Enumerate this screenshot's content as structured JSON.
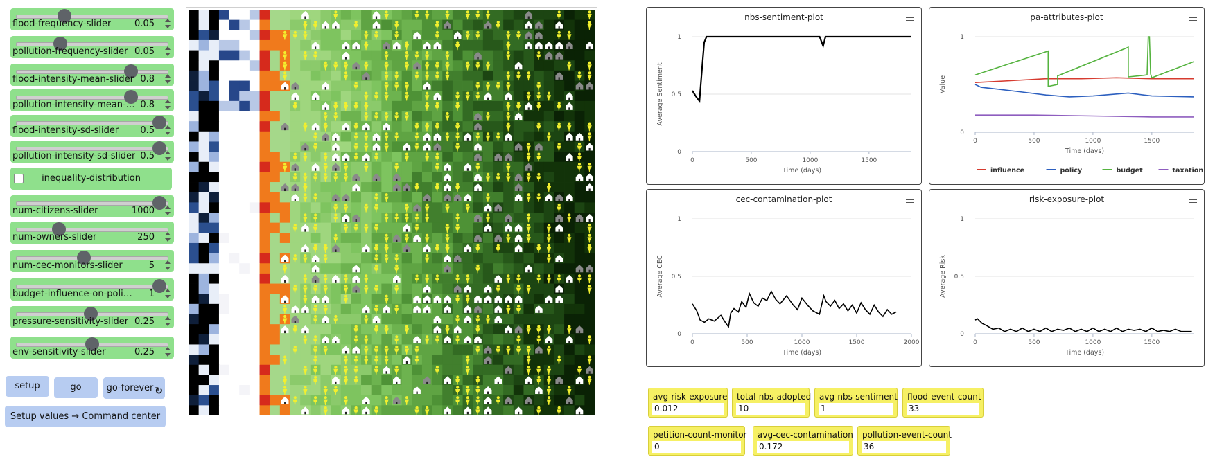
{
  "sliders": [
    {
      "name": "flood-frequency-slider",
      "label": "flood-frequency-slider",
      "value": "0.05",
      "pos": 0.3
    },
    {
      "name": "pollution-frequency-slider",
      "label": "pollution-frequency-slider",
      "value": "0.05",
      "pos": 0.27
    },
    {
      "name": "flood-intensity-mean-slider",
      "label": "flood-intensity-mean-slider",
      "value": "0.8",
      "pos": 0.78
    },
    {
      "name": "pollution-intensity-mean-slider",
      "label": "pollution-intensity-mean-slider",
      "value": "0.8",
      "pos": 0.78
    },
    {
      "name": "flood-intensity-sd-slider",
      "label": "flood-intensity-sd-slider",
      "value": "0.5",
      "pos": 0.985
    },
    {
      "name": "pollution-intensity-sd-slider",
      "label": "pollution-intensity-sd-slider",
      "value": "0.5",
      "pos": 0.985
    },
    {
      "name": "num-citizens-slider",
      "label": "num-citizens-slider",
      "value": "1000",
      "pos": 0.985
    },
    {
      "name": "num-owners-slider",
      "label": "num-owners-slider",
      "value": "250",
      "pos": 0.26
    },
    {
      "name": "num-cec-monitors-slider",
      "label": "num-cec-monitors-slider",
      "value": "5",
      "pos": 0.44
    },
    {
      "name": "budget-influence-on-policy-slider",
      "label": "budget-influence-on-policy-slider",
      "value": "1",
      "pos": 0.985
    },
    {
      "name": "pressure-sensitivity-slider",
      "label": "pressure-sensitivity-slider",
      "value": "0.25",
      "pos": 0.49
    },
    {
      "name": "env-sensitivity-slider",
      "label": "env-sensitivity-slider",
      "value": "0.25",
      "pos": 0.5
    }
  ],
  "switch": {
    "label": "inequality-distribution",
    "checked": false
  },
  "buttons": {
    "setup": "setup",
    "go": "go",
    "go_forever": "go-forever",
    "setup_values": "Setup values → Command center"
  },
  "plots": {
    "nbs": {
      "title": "nbs-sentiment-plot",
      "xlabel": "Time (days)",
      "ylabel": "Average Sentiment"
    },
    "pa": {
      "title": "pa-attributes-plot",
      "xlabel": "Time (days)",
      "ylabel": "Value"
    },
    "cec": {
      "title": "cec-contamination-plot",
      "xlabel": "Time (days)",
      "ylabel": "Average CEC"
    },
    "risk": {
      "title": "risk-exposure-plot",
      "xlabel": "Time (days)",
      "ylabel": "Average Risk"
    }
  },
  "chart_data": [
    {
      "type": "line",
      "title": "nbs-sentiment-plot",
      "xlabel": "Time (days)",
      "ylabel": "Average Sentiment",
      "xlim": [
        0,
        1860
      ],
      "ylim": [
        0,
        1
      ],
      "xticks": [
        0,
        500,
        1000,
        1500
      ],
      "yticks": [
        0,
        0.5,
        1
      ],
      "series": [
        {
          "color": "#000000",
          "x": [
            0,
            30,
            60,
            80,
            100,
            120,
            1000,
            1080,
            1110,
            1130,
            1180,
            1860
          ],
          "y": [
            0.53,
            0.48,
            0.44,
            0.7,
            0.95,
            1,
            1,
            1,
            0.92,
            1,
            1,
            1
          ]
        }
      ]
    },
    {
      "type": "line",
      "title": "pa-attributes-plot",
      "xlabel": "Time (days)",
      "ylabel": "Value",
      "xlim": [
        0,
        1860
      ],
      "ylim": [
        0,
        1
      ],
      "xticks": [
        0,
        500,
        1000,
        1500
      ],
      "yticks": [
        0,
        1
      ],
      "legend": "bottom",
      "series": [
        {
          "name": "influence",
          "color": "#d63b2f",
          "x": [
            0,
            300,
            600,
            900,
            1200,
            1500,
            1860
          ],
          "y": [
            0.52,
            0.54,
            0.56,
            0.56,
            0.57,
            0.56,
            0.56
          ]
        },
        {
          "name": "policy",
          "color": "#2c5fbf",
          "x": [
            0,
            50,
            200,
            400,
            600,
            800,
            1000,
            1300,
            1500,
            1860
          ],
          "y": [
            0.5,
            0.47,
            0.45,
            0.42,
            0.39,
            0.37,
            0.38,
            0.41,
            0.38,
            0.37
          ]
        },
        {
          "name": "budget",
          "color": "#55b33f",
          "x": [
            0,
            620,
            620,
            700,
            700,
            1300,
            1300,
            1460,
            1470,
            1480,
            1490,
            1500,
            1860
          ],
          "y": [
            0.6,
            0.85,
            0.48,
            0.5,
            0.59,
            0.89,
            0.58,
            0.6,
            1,
            1,
            0.61,
            0.57,
            0.74
          ]
        },
        {
          "name": "taxation",
          "color": "#8e5dbf",
          "x": [
            0,
            500,
            1000,
            1500,
            1860
          ],
          "y": [
            0.18,
            0.18,
            0.17,
            0.16,
            0.16
          ]
        }
      ]
    },
    {
      "type": "line",
      "title": "cec-contamination-plot",
      "xlabel": "Time (days)",
      "ylabel": "Average CEC",
      "xlim": [
        0,
        2000
      ],
      "ylim": [
        0,
        1
      ],
      "xticks": [
        0,
        500,
        1000,
        1500,
        2000
      ],
      "yticks": [
        0,
        0.5,
        1
      ],
      "series": [
        {
          "color": "#000000",
          "x": [
            0,
            40,
            70,
            110,
            150,
            200,
            260,
            300,
            330,
            350,
            380,
            420,
            450,
            490,
            520,
            560,
            600,
            640,
            680,
            720,
            760,
            800,
            860,
            920,
            960,
            1000,
            1060,
            1100,
            1160,
            1200,
            1220,
            1260,
            1300,
            1340,
            1380,
            1420,
            1460,
            1500,
            1540,
            1580,
            1620,
            1660,
            1700,
            1740,
            1780,
            1820,
            1860
          ],
          "y": [
            0.26,
            0.2,
            0.12,
            0.1,
            0.13,
            0.11,
            0.16,
            0.1,
            0.06,
            0.18,
            0.22,
            0.19,
            0.28,
            0.23,
            0.35,
            0.27,
            0.24,
            0.31,
            0.29,
            0.37,
            0.3,
            0.26,
            0.33,
            0.25,
            0.21,
            0.31,
            0.24,
            0.2,
            0.17,
            0.33,
            0.28,
            0.24,
            0.29,
            0.22,
            0.26,
            0.2,
            0.25,
            0.18,
            0.27,
            0.21,
            0.17,
            0.25,
            0.19,
            0.15,
            0.21,
            0.17,
            0.19
          ]
        }
      ]
    },
    {
      "type": "line",
      "title": "risk-exposure-plot",
      "xlabel": "Time (days)",
      "ylabel": "Average Risk",
      "xlim": [
        0,
        1860
      ],
      "ylim": [
        0,
        1
      ],
      "xticks": [
        0,
        500,
        1000,
        1500
      ],
      "yticks": [
        0,
        0.5,
        1
      ],
      "series": [
        {
          "color": "#000000",
          "x": [
            0,
            20,
            60,
            100,
            150,
            200,
            250,
            300,
            350,
            400,
            450,
            500,
            550,
            600,
            650,
            700,
            750,
            800,
            850,
            900,
            950,
            1000,
            1050,
            1100,
            1150,
            1200,
            1250,
            1300,
            1350,
            1400,
            1450,
            1500,
            1550,
            1600,
            1650,
            1700,
            1750,
            1800,
            1840
          ],
          "y": [
            0.12,
            0.13,
            0.09,
            0.07,
            0.04,
            0.05,
            0.02,
            0.04,
            0.02,
            0.05,
            0.02,
            0.04,
            0.02,
            0.05,
            0.02,
            0.04,
            0.03,
            0.05,
            0.02,
            0.04,
            0.02,
            0.05,
            0.02,
            0.04,
            0.02,
            0.05,
            0.02,
            0.04,
            0.03,
            0.04,
            0.02,
            0.05,
            0.02,
            0.03,
            0.02,
            0.04,
            0.02,
            0.02,
            0.02
          ]
        }
      ]
    }
  ],
  "monitors": [
    {
      "name": "avg-risk-exposure",
      "label": "avg-risk-exposure",
      "value": "0.012"
    },
    {
      "name": "total-nbs-adopted",
      "label": "total-nbs-adopted",
      "value": "10"
    },
    {
      "name": "avg-nbs-sentiment",
      "label": "avg-nbs-sentiment",
      "value": "1"
    },
    {
      "name": "flood-event-count",
      "label": "flood-event-count",
      "value": "33"
    },
    {
      "name": "petition-count-monitor",
      "label": "petition-count-monitor",
      "value": "0"
    },
    {
      "name": "avg-cec-contamination",
      "label": "avg-cec-contamination",
      "value": "0.172"
    },
    {
      "name": "pollution-event-count",
      "label": "pollution-event-count",
      "value": "36"
    }
  ]
}
